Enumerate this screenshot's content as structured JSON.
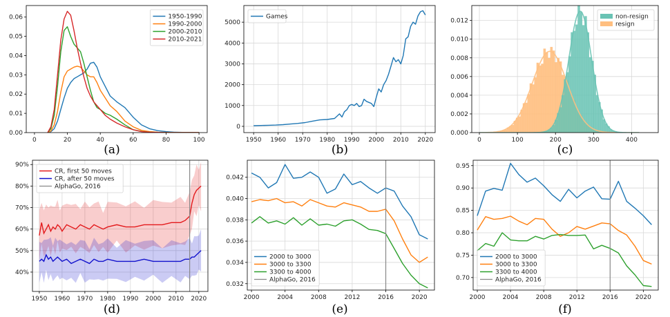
{
  "colors": {
    "blue": "#1f77b4",
    "orange": "#ff7f0e",
    "green": "#2ca02c",
    "red": "#d62728",
    "teal": "#69c3b4",
    "peach": "#ffbf80",
    "crRed": "#e31a1c",
    "crBlue": "#1010cc",
    "vline": "#888888",
    "grid": "#d8d8d8"
  },
  "chart_data": [
    {
      "id": "a",
      "type": "line",
      "caption": "(a)",
      "xlim": [
        -5,
        105
      ],
      "ylim": [
        0,
        0.066
      ],
      "xticks": [
        0,
        20,
        40,
        60,
        80,
        100
      ],
      "yticks": [
        0.0,
        0.01,
        0.02,
        0.03,
        0.04,
        0.05,
        0.06
      ],
      "ytick_labels": [
        "0.00",
        "0.01",
        "0.02",
        "0.03",
        "0.04",
        "0.05",
        "0.06"
      ],
      "grid": false,
      "legend_position": "top-right",
      "x": [
        8,
        10,
        12,
        14,
        16,
        18,
        20,
        22,
        24,
        26,
        28,
        30,
        32,
        34,
        36,
        38,
        40,
        43,
        46,
        50,
        55,
        60,
        65,
        70,
        75,
        80,
        85,
        90,
        95,
        100
      ],
      "series": [
        {
          "name": "1950-1990",
          "color": "#1f77b4",
          "values": [
            0,
            0.0005,
            0.002,
            0.006,
            0.012,
            0.018,
            0.023,
            0.026,
            0.028,
            0.029,
            0.03,
            0.031,
            0.033,
            0.036,
            0.0365,
            0.034,
            0.029,
            0.024,
            0.019,
            0.016,
            0.013,
            0.008,
            0.004,
            0.002,
            0.001,
            0.0005,
            0.0002,
            0.0001,
            0.0001,
            0
          ]
        },
        {
          "name": "1990-2000",
          "color": "#ff7f0e",
          "values": [
            0,
            0.0008,
            0.004,
            0.011,
            0.021,
            0.029,
            0.032,
            0.033,
            0.034,
            0.0345,
            0.034,
            0.032,
            0.03,
            0.029,
            0.029,
            0.026,
            0.022,
            0.018,
            0.014,
            0.011,
            0.006,
            0.003,
            0.0012,
            0.0005,
            0.0002,
            0.0001,
            0,
            0,
            0,
            0
          ]
        },
        {
          "name": "2000-2010",
          "color": "#2ca02c",
          "values": [
            0,
            0.002,
            0.009,
            0.024,
            0.042,
            0.053,
            0.055,
            0.05,
            0.046,
            0.044,
            0.042,
            0.036,
            0.029,
            0.022,
            0.016,
            0.013,
            0.012,
            0.01,
            0.009,
            0.007,
            0.004,
            0.0015,
            0.0006,
            0.0002,
            0.0001,
            0,
            0,
            0,
            0,
            0
          ]
        },
        {
          "name": "2010-2021",
          "color": "#d62728",
          "values": [
            0,
            0.003,
            0.012,
            0.03,
            0.048,
            0.059,
            0.063,
            0.061,
            0.053,
            0.044,
            0.036,
            0.029,
            0.023,
            0.019,
            0.016,
            0.014,
            0.012,
            0.009,
            0.007,
            0.005,
            0.003,
            0.0015,
            0.0005,
            0.0002,
            0.0001,
            0,
            0,
            0,
            0,
            0
          ]
        }
      ]
    },
    {
      "id": "b",
      "type": "line",
      "caption": "(b)",
      "xlim": [
        1946,
        2024
      ],
      "ylim": [
        -300,
        5800
      ],
      "xticks": [
        1950,
        1960,
        1970,
        1980,
        1990,
        2000,
        2010,
        2020
      ],
      "yticks": [
        0,
        1000,
        2000,
        3000,
        4000,
        5000
      ],
      "grid": true,
      "legend_position": "top-left",
      "x": [
        1950,
        1953,
        1956,
        1959,
        1962,
        1965,
        1968,
        1971,
        1974,
        1977,
        1980,
        1983,
        1985,
        1986,
        1987,
        1988,
        1989,
        1990,
        1991,
        1992,
        1993,
        1994,
        1995,
        1996,
        1997,
        1998,
        1999,
        2000,
        2001,
        2002,
        2003,
        2004,
        2005,
        2006,
        2007,
        2008,
        2009,
        2010,
        2011,
        2012,
        2013,
        2014,
        2015,
        2016,
        2017,
        2018,
        2019,
        2020
      ],
      "series": [
        {
          "name": "Games",
          "color": "#1f77b4",
          "values": [
            30,
            40,
            50,
            60,
            80,
            110,
            140,
            180,
            250,
            310,
            330,
            380,
            600,
            450,
            700,
            800,
            1000,
            1050,
            1000,
            1100,
            950,
            1000,
            1300,
            1200,
            1150,
            1100,
            950,
            1400,
            1800,
            1650,
            2000,
            2200,
            2500,
            2900,
            3300,
            3100,
            3200,
            3000,
            3400,
            4200,
            4300,
            4800,
            5000,
            4900,
            5300,
            5500,
            5550,
            5350
          ]
        }
      ]
    },
    {
      "id": "c",
      "type": "bar",
      "caption": "(c)",
      "xlim": [
        -20,
        470
      ],
      "ylim": [
        0,
        0.0136
      ],
      "xticks": [
        0,
        100,
        200,
        300,
        400
      ],
      "yticks": [
        0.0,
        0.002,
        0.004,
        0.006,
        0.008,
        0.01,
        0.012
      ],
      "ytick_labels": [
        "0.000",
        "0.002",
        "0.004",
        "0.006",
        "0.008",
        "0.010",
        "0.012"
      ],
      "grid": true,
      "legend_position": "top-right",
      "series": [
        {
          "name": "non-resign",
          "color": "#69c3b4",
          "mean": 265,
          "sd": 30,
          "peak": 0.013
        },
        {
          "name": "resign",
          "color": "#ffbf80",
          "mean": 185,
          "sd": 46,
          "peak": 0.0087
        }
      ]
    },
    {
      "id": "d",
      "type": "area",
      "caption": "(d)",
      "xlim": [
        1947,
        2024
      ],
      "ylim": [
        0.31,
        0.92
      ],
      "xticks": [
        1950,
        1960,
        1970,
        1980,
        1990,
        2000,
        2010,
        2020
      ],
      "yticks": [
        0.4,
        0.5,
        0.6,
        0.7,
        0.8,
        0.9
      ],
      "ytick_labels": [
        "40%",
        "50%",
        "60%",
        "70%",
        "80%",
        "90%"
      ],
      "grid": true,
      "legend_position": "top-left",
      "vline": 2016,
      "series": [
        {
          "name": "CR, first 50 moves",
          "color": "#e31a1c",
          "band": 0.12,
          "x": [
            1950,
            1951,
            1952,
            1953,
            1954,
            1955,
            1956,
            1957,
            1958,
            1959,
            1960,
            1962,
            1964,
            1966,
            1968,
            1970,
            1972,
            1974,
            1976,
            1978,
            1980,
            1984,
            1988,
            1992,
            1996,
            2000,
            2004,
            2008,
            2012,
            2014,
            2016,
            2017,
            2018,
            2019,
            2020,
            2021
          ],
          "values": [
            0.57,
            0.63,
            0.58,
            0.6,
            0.62,
            0.59,
            0.61,
            0.6,
            0.62,
            0.61,
            0.59,
            0.62,
            0.61,
            0.6,
            0.62,
            0.61,
            0.6,
            0.62,
            0.61,
            0.6,
            0.61,
            0.62,
            0.61,
            0.61,
            0.62,
            0.62,
            0.62,
            0.63,
            0.63,
            0.64,
            0.66,
            0.72,
            0.76,
            0.78,
            0.79,
            0.8
          ]
        },
        {
          "name": "CR, after 50 moves",
          "color": "#1010cc",
          "band": 0.1,
          "x": [
            1950,
            1951,
            1952,
            1953,
            1954,
            1955,
            1956,
            1957,
            1958,
            1959,
            1960,
            1962,
            1964,
            1966,
            1968,
            1970,
            1972,
            1974,
            1976,
            1978,
            1980,
            1984,
            1988,
            1992,
            1996,
            2000,
            2004,
            2008,
            2012,
            2014,
            2016,
            2017,
            2018,
            2019,
            2020,
            2021
          ],
          "values": [
            0.45,
            0.46,
            0.45,
            0.48,
            0.46,
            0.47,
            0.45,
            0.46,
            0.47,
            0.46,
            0.45,
            0.46,
            0.44,
            0.45,
            0.46,
            0.45,
            0.44,
            0.46,
            0.45,
            0.45,
            0.46,
            0.45,
            0.45,
            0.45,
            0.46,
            0.45,
            0.45,
            0.45,
            0.45,
            0.46,
            0.46,
            0.47,
            0.47,
            0.48,
            0.49,
            0.5
          ]
        },
        {
          "name": "AlphaGo, 2016",
          "color": "#888888"
        }
      ]
    },
    {
      "id": "e",
      "type": "line",
      "caption": "(e)",
      "xlim": [
        1999.5,
        2021.8
      ],
      "ylim": [
        0.0314,
        0.0436
      ],
      "xticks": [
        2000,
        2004,
        2008,
        2012,
        2016,
        2020
      ],
      "yticks": [
        0.032,
        0.034,
        0.036,
        0.038,
        0.04,
        0.042
      ],
      "ytick_labels": [
        "0.032",
        "0.034",
        "0.036",
        "0.038",
        "0.040",
        "0.042"
      ],
      "grid": true,
      "legend_position": "bottom-left",
      "vline": 2016,
      "x": [
        2000,
        2001,
        2002,
        2003,
        2004,
        2005,
        2006,
        2007,
        2008,
        2009,
        2010,
        2011,
        2012,
        2013,
        2014,
        2015,
        2016,
        2017,
        2018,
        2019,
        2020,
        2021
      ],
      "series": [
        {
          "name": "2000 to 3000",
          "color": "#1f77b4",
          "values": [
            0.0424,
            0.042,
            0.041,
            0.0415,
            0.0432,
            0.0419,
            0.042,
            0.0425,
            0.042,
            0.0405,
            0.0409,
            0.0423,
            0.0413,
            0.0416,
            0.041,
            0.0405,
            0.041,
            0.0407,
            0.0393,
            0.0383,
            0.0366,
            0.0362
          ]
        },
        {
          "name": "3000 to 3300",
          "color": "#ff7f0e",
          "values": [
            0.0397,
            0.0399,
            0.0398,
            0.04,
            0.0396,
            0.0397,
            0.0393,
            0.0399,
            0.0396,
            0.0393,
            0.0392,
            0.0396,
            0.0394,
            0.0392,
            0.0388,
            0.0388,
            0.039,
            0.0379,
            0.0362,
            0.0347,
            0.034,
            0.0345
          ]
        },
        {
          "name": "3300 to 4000",
          "color": "#2ca02c",
          "values": [
            0.0377,
            0.0383,
            0.0377,
            0.0379,
            0.0376,
            0.0382,
            0.0375,
            0.0381,
            0.0375,
            0.0376,
            0.0374,
            0.0379,
            0.038,
            0.0376,
            0.0371,
            0.037,
            0.0367,
            0.0353,
            0.0339,
            0.0328,
            0.032,
            0.0316
          ]
        },
        {
          "name": "AlphaGo, 2016",
          "color": "#888888"
        }
      ]
    },
    {
      "id": "f",
      "type": "line",
      "caption": "(f)",
      "xlim": [
        1999.5,
        2021.8
      ],
      "ylim": [
        0.672,
        0.962
      ],
      "xticks": [
        2000,
        2004,
        2008,
        2012,
        2016,
        2020
      ],
      "yticks": [
        0.7,
        0.75,
        0.8,
        0.85,
        0.9,
        0.95
      ],
      "ytick_labels": [
        "0.70",
        "0.75",
        "0.80",
        "0.85",
        "0.90",
        "0.95"
      ],
      "grid": true,
      "legend_position": "bottom-left",
      "vline": 2016,
      "x": [
        2000,
        2001,
        2002,
        2003,
        2004,
        2005,
        2006,
        2007,
        2008,
        2009,
        2010,
        2011,
        2012,
        2013,
        2014,
        2015,
        2016,
        2017,
        2018,
        2019,
        2020,
        2021
      ],
      "series": [
        {
          "name": "2000 to 3000",
          "color": "#1f77b4",
          "values": [
            0.838,
            0.893,
            0.899,
            0.895,
            0.955,
            0.93,
            0.913,
            0.922,
            0.905,
            0.885,
            0.87,
            0.897,
            0.878,
            0.893,
            0.902,
            0.876,
            0.875,
            0.915,
            0.87,
            0.855,
            0.838,
            0.818
          ]
        },
        {
          "name": "3000 to 3300",
          "color": "#ff7f0e",
          "values": [
            0.806,
            0.836,
            0.83,
            0.832,
            0.837,
            0.826,
            0.818,
            0.832,
            0.83,
            0.808,
            0.792,
            0.8,
            0.814,
            0.808,
            0.815,
            0.822,
            0.82,
            0.805,
            0.795,
            0.77,
            0.738,
            0.73
          ]
        },
        {
          "name": "3300 to 4000",
          "color": "#2ca02c",
          "values": [
            0.76,
            0.776,
            0.77,
            0.8,
            0.784,
            0.782,
            0.782,
            0.792,
            0.786,
            0.794,
            0.796,
            0.794,
            0.794,
            0.795,
            0.764,
            0.772,
            0.765,
            0.755,
            0.726,
            0.706,
            0.682,
            0.68
          ]
        },
        {
          "name": "AlphaGo, 2016",
          "color": "#888888"
        }
      ]
    }
  ]
}
